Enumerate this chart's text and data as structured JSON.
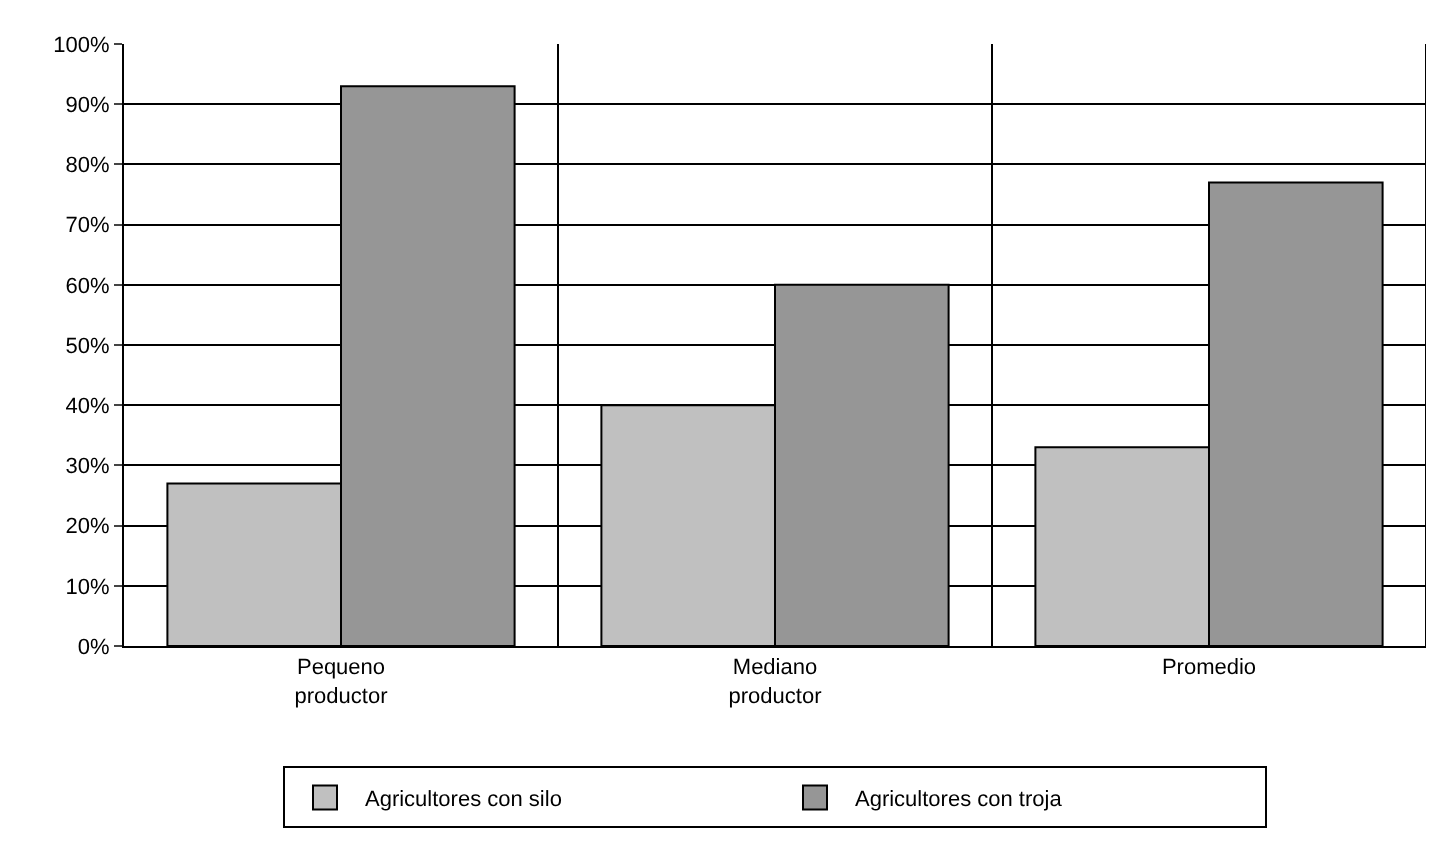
{
  "chart_data": {
    "type": "bar",
    "categories": [
      "Pequeno productor",
      "Mediano productor",
      "Promedio"
    ],
    "series": [
      {
        "name": "Agricultores con silo",
        "color": "#c0c0c0",
        "values": [
          27,
          40,
          33
        ]
      },
      {
        "name": "Agricultores con troja",
        "color": "#969696",
        "values": [
          93,
          60,
          77
        ]
      }
    ],
    "ylim": [
      0,
      100
    ],
    "yticks": [
      {
        "value": 0,
        "label": "0%"
      },
      {
        "value": 10,
        "label": "10%"
      },
      {
        "value": 20,
        "label": "20%"
      },
      {
        "value": 30,
        "label": "30%"
      },
      {
        "value": 40,
        "label": "40%"
      },
      {
        "value": 50,
        "label": "50%"
      },
      {
        "value": 60,
        "label": "60%"
      },
      {
        "value": 70,
        "label": "70%"
      },
      {
        "value": 80,
        "label": "80%"
      },
      {
        "value": 90,
        "label": "90%"
      },
      {
        "value": 100,
        "label": "100%"
      }
    ],
    "grid": true,
    "legend": "bottom"
  }
}
